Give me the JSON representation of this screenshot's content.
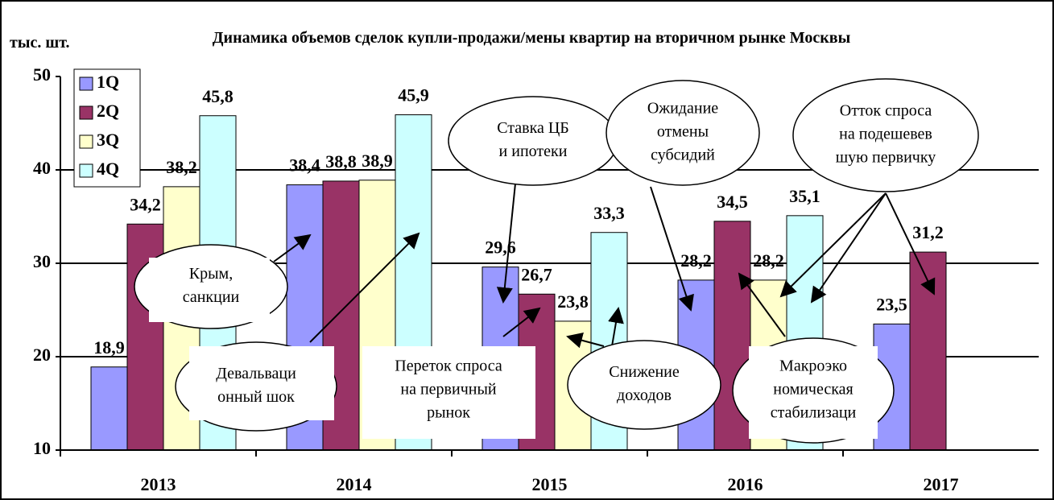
{
  "chart_data": {
    "type": "bar",
    "title": "Динамика объемов сделок купли-продажи/мены квартир на вторичном рынке Москвы",
    "y_label": "тыс. шт.",
    "categories": [
      "2013",
      "2014",
      "2015",
      "2016",
      "2017"
    ],
    "series": [
      {
        "name": "1Q",
        "color": "#9999ff",
        "values": [
          18.9,
          38.4,
          29.6,
          28.2,
          23.5
        ],
        "value_labels": [
          "18,9",
          "38,4",
          "29,6",
          "28,2",
          "23,5"
        ]
      },
      {
        "name": "2Q",
        "color": "#993366",
        "values": [
          34.2,
          38.8,
          26.7,
          34.5,
          31.2
        ],
        "value_labels": [
          "34,2",
          "38,8",
          "26,7",
          "34,5",
          "31,2"
        ]
      },
      {
        "name": "3Q",
        "color": "#ffffcc",
        "values": [
          38.2,
          38.9,
          23.8,
          28.2,
          null
        ],
        "value_labels": [
          "38,2",
          "38,9",
          "23,8",
          "28,2",
          null
        ]
      },
      {
        "name": "4Q",
        "color": "#ccffff",
        "values": [
          45.8,
          45.9,
          33.3,
          35.1,
          null
        ],
        "value_labels": [
          "45,8",
          "45,9",
          "33,3",
          "35,1",
          null
        ]
      }
    ],
    "ylim": [
      10,
      50
    ],
    "yticks": [
      10,
      20,
      30,
      40,
      50
    ],
    "grid": true,
    "legend": "upper left",
    "annotations": [
      {
        "lines": [
          "Крым,",
          "санкции"
        ]
      },
      {
        "lines": [
          "Девальваци",
          "онный шок"
        ]
      },
      {
        "lines": [
          "Ставка ЦБ",
          "и ипотеки"
        ]
      },
      {
        "lines": [
          "Ожидание",
          "отмены",
          "субсидий"
        ]
      },
      {
        "lines": [
          "Отток спроса",
          "на подешевев",
          "шую первичку"
        ]
      },
      {
        "lines": [
          "Переток спроса",
          "на первичный",
          "рынок"
        ]
      },
      {
        "lines": [
          "Снижение",
          "доходов"
        ]
      },
      {
        "lines": [
          "Макроэко",
          "номическая",
          "стабилизаци"
        ]
      }
    ]
  }
}
